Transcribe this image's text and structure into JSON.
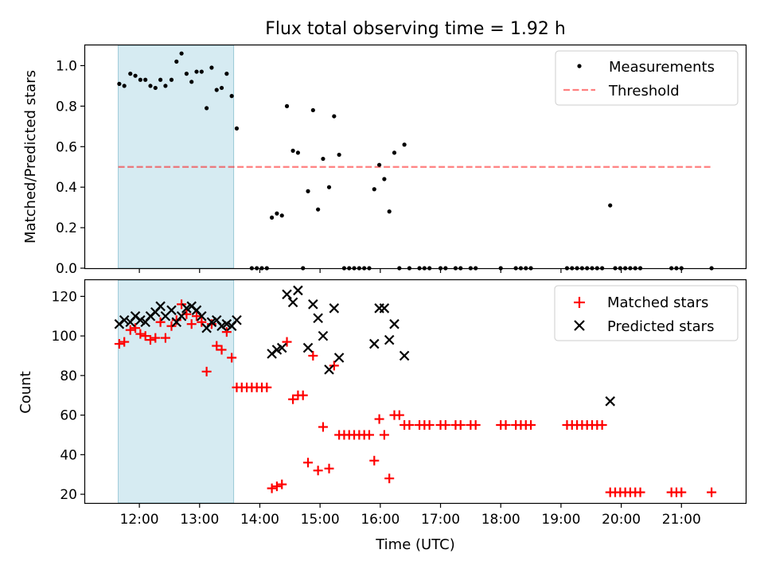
{
  "chart_data": [
    {
      "type": "scatter",
      "title": "Flux total observing time = 1.92 h",
      "xlabel": "",
      "ylabel": "Matched/Predicted stars",
      "ylim": [
        0,
        1.1
      ],
      "yticks": [
        "0.0",
        "0.2",
        "0.4",
        "0.6",
        "0.8",
        "1.0"
      ],
      "legend_position": "top-right",
      "grid": false,
      "shaded_interval": {
        "start": "11:39",
        "end": "13:34",
        "color": "#add8e6"
      },
      "threshold": {
        "name": "Threshold",
        "value": 0.5,
        "x_start": "11:39",
        "x_end": "21:30",
        "color": "#ff0000"
      },
      "series": [
        {
          "name": "Measurements",
          "marker": "dot",
          "color": "#000000",
          "points": [
            [
              "11:40",
              0.91
            ],
            [
              "11:45",
              0.9
            ],
            [
              "11:51",
              0.96
            ],
            [
              "11:56",
              0.95
            ],
            [
              "12:01",
              0.93
            ],
            [
              "12:06",
              0.93
            ],
            [
              "12:11",
              0.9
            ],
            [
              "12:16",
              0.89
            ],
            [
              "12:21",
              0.93
            ],
            [
              "12:26",
              0.9
            ],
            [
              "12:32",
              0.93
            ],
            [
              "12:37",
              1.02
            ],
            [
              "12:42",
              1.06
            ],
            [
              "12:47",
              0.96
            ],
            [
              "12:52",
              0.92
            ],
            [
              "12:57",
              0.97
            ],
            [
              "13:02",
              0.97
            ],
            [
              "13:07",
              0.79
            ],
            [
              "13:12",
              0.99
            ],
            [
              "13:17",
              0.88
            ],
            [
              "13:22",
              0.89
            ],
            [
              "13:27",
              0.96
            ],
            [
              "13:32",
              0.85
            ],
            [
              "13:37",
              0.69
            ],
            [
              "14:12",
              0.25
            ],
            [
              "14:17",
              0.27
            ],
            [
              "14:22",
              0.26
            ],
            [
              "14:27",
              0.8
            ],
            [
              "14:33",
              0.58
            ],
            [
              "14:38",
              0.57
            ],
            [
              "14:48",
              0.38
            ],
            [
              "14:53",
              0.78
            ],
            [
              "14:58",
              0.29
            ],
            [
              "15:03",
              0.54
            ],
            [
              "15:09",
              0.4
            ],
            [
              "15:14",
              0.75
            ],
            [
              "15:19",
              0.56
            ],
            [
              "15:54",
              0.39
            ],
            [
              "15:59",
              0.51
            ],
            [
              "16:04",
              0.44
            ],
            [
              "16:09",
              0.28
            ],
            [
              "16:14",
              0.57
            ],
            [
              "16:24",
              0.61
            ],
            [
              "19:49",
              0.31
            ],
            [
              "13:52",
              0.0
            ],
            [
              "13:57",
              0.0
            ],
            [
              "14:02",
              0.0
            ],
            [
              "14:07",
              0.0
            ],
            [
              "14:43",
              0.0
            ],
            [
              "15:24",
              0.0
            ],
            [
              "15:29",
              0.0
            ],
            [
              "15:34",
              0.0
            ],
            [
              "15:39",
              0.0
            ],
            [
              "15:44",
              0.0
            ],
            [
              "15:49",
              0.0
            ],
            [
              "16:19",
              0.0
            ],
            [
              "16:29",
              0.0
            ],
            [
              "16:39",
              0.0
            ],
            [
              "16:44",
              0.0
            ],
            [
              "16:49",
              0.0
            ],
            [
              "17:00",
              0.0
            ],
            [
              "17:05",
              0.0
            ],
            [
              "17:15",
              0.0
            ],
            [
              "17:20",
              0.0
            ],
            [
              "17:30",
              0.0
            ],
            [
              "17:35",
              0.0
            ],
            [
              "18:00",
              0.0
            ],
            [
              "18:15",
              0.0
            ],
            [
              "18:20",
              0.0
            ],
            [
              "18:25",
              0.0
            ],
            [
              "18:30",
              0.0
            ],
            [
              "19:06",
              0.0
            ],
            [
              "19:11",
              0.0
            ],
            [
              "19:16",
              0.0
            ],
            [
              "19:21",
              0.0
            ],
            [
              "19:26",
              0.0
            ],
            [
              "19:31",
              0.0
            ],
            [
              "19:36",
              0.0
            ],
            [
              "19:41",
              0.0
            ],
            [
              "19:54",
              0.0
            ],
            [
              "19:59",
              0.0
            ],
            [
              "20:04",
              0.0
            ],
            [
              "20:09",
              0.0
            ],
            [
              "20:14",
              0.0
            ],
            [
              "20:19",
              0.0
            ],
            [
              "20:50",
              0.0
            ],
            [
              "20:55",
              0.0
            ],
            [
              "21:00",
              0.0
            ],
            [
              "21:30",
              0.0
            ]
          ]
        }
      ]
    },
    {
      "type": "scatter",
      "title": "",
      "xlabel": "Time (UTC)",
      "ylabel": "Count",
      "ylim": [
        15.6,
        128.2
      ],
      "yticks": [
        "20",
        "40",
        "60",
        "80",
        "100",
        "120"
      ],
      "xticks": [
        "12:00",
        "13:00",
        "14:00",
        "15:00",
        "16:00",
        "17:00",
        "18:00",
        "19:00",
        "20:00",
        "21:00"
      ],
      "xlim": [
        "11:06",
        "22:04"
      ],
      "legend_position": "top-right",
      "grid": false,
      "shaded_interval": {
        "start": "11:39",
        "end": "13:34",
        "color": "#add8e6"
      },
      "series": [
        {
          "name": "Matched stars",
          "marker": "plus",
          "color": "#ff0000",
          "points": [
            [
              "11:40",
              96
            ],
            [
              "11:45",
              97
            ],
            [
              "11:51",
              103
            ],
            [
              "11:56",
              104
            ],
            [
              "12:01",
              101
            ],
            [
              "12:06",
              100
            ],
            [
              "12:11",
              98
            ],
            [
              "12:16",
              99
            ],
            [
              "12:21",
              107
            ],
            [
              "12:26",
              99
            ],
            [
              "12:32",
              105
            ],
            [
              "12:37",
              108
            ],
            [
              "12:42",
              116
            ],
            [
              "12:47",
              111
            ],
            [
              "12:52",
              106
            ],
            [
              "12:57",
              110
            ],
            [
              "13:02",
              107
            ],
            [
              "13:07",
              82
            ],
            [
              "13:12",
              106
            ],
            [
              "13:17",
              95
            ],
            [
              "13:22",
              93
            ],
            [
              "13:27",
              102
            ],
            [
              "13:32",
              89
            ],
            [
              "13:37",
              74
            ],
            [
              "13:42",
              74
            ],
            [
              "13:47",
              74
            ],
            [
              "13:52",
              74
            ],
            [
              "13:57",
              74
            ],
            [
              "14:02",
              74
            ],
            [
              "14:07",
              74
            ],
            [
              "14:12",
              23
            ],
            [
              "14:17",
              24
            ],
            [
              "14:22",
              25
            ],
            [
              "14:27",
              97
            ],
            [
              "14:33",
              68
            ],
            [
              "14:38",
              70
            ],
            [
              "14:43",
              70
            ],
            [
              "14:48",
              36
            ],
            [
              "14:53",
              90
            ],
            [
              "14:58",
              32
            ],
            [
              "15:03",
              54
            ],
            [
              "15:09",
              33
            ],
            [
              "15:14",
              85
            ],
            [
              "15:19",
              50
            ],
            [
              "15:24",
              50
            ],
            [
              "15:29",
              50
            ],
            [
              "15:34",
              50
            ],
            [
              "15:39",
              50
            ],
            [
              "15:44",
              50
            ],
            [
              "15:49",
              50
            ],
            [
              "15:54",
              37
            ],
            [
              "15:59",
              58
            ],
            [
              "16:04",
              50
            ],
            [
              "16:09",
              28
            ],
            [
              "16:14",
              60
            ],
            [
              "16:19",
              60
            ],
            [
              "16:24",
              55
            ],
            [
              "16:29",
              55
            ],
            [
              "16:39",
              55
            ],
            [
              "16:44",
              55
            ],
            [
              "16:49",
              55
            ],
            [
              "17:00",
              55
            ],
            [
              "17:05",
              55
            ],
            [
              "17:15",
              55
            ],
            [
              "17:20",
              55
            ],
            [
              "17:30",
              55
            ],
            [
              "17:35",
              55
            ],
            [
              "18:00",
              55
            ],
            [
              "18:05",
              55
            ],
            [
              "18:15",
              55
            ],
            [
              "18:20",
              55
            ],
            [
              "18:25",
              55
            ],
            [
              "18:30",
              55
            ],
            [
              "19:06",
              55
            ],
            [
              "19:11",
              55
            ],
            [
              "19:16",
              55
            ],
            [
              "19:21",
              55
            ],
            [
              "19:26",
              55
            ],
            [
              "19:31",
              55
            ],
            [
              "19:36",
              55
            ],
            [
              "19:41",
              55
            ],
            [
              "19:49",
              21
            ],
            [
              "19:54",
              21
            ],
            [
              "19:59",
              21
            ],
            [
              "20:04",
              21
            ],
            [
              "20:09",
              21
            ],
            [
              "20:14",
              21
            ],
            [
              "20:19",
              21
            ],
            [
              "20:50",
              21
            ],
            [
              "20:55",
              21
            ],
            [
              "21:00",
              21
            ],
            [
              "21:30",
              21
            ]
          ]
        },
        {
          "name": "Predicted stars",
          "marker": "x",
          "color": "#000000",
          "points": [
            [
              "11:40",
              106
            ],
            [
              "11:45",
              108
            ],
            [
              "11:51",
              107
            ],
            [
              "11:56",
              110
            ],
            [
              "12:01",
              108
            ],
            [
              "12:06",
              107
            ],
            [
              "12:11",
              110
            ],
            [
              "12:16",
              112
            ],
            [
              "12:21",
              115
            ],
            [
              "12:26",
              110
            ],
            [
              "12:32",
              113
            ],
            [
              "12:37",
              107
            ],
            [
              "12:42",
              110
            ],
            [
              "12:47",
              114
            ],
            [
              "12:52",
              115
            ],
            [
              "12:57",
              113
            ],
            [
              "13:02",
              110
            ],
            [
              "13:07",
              104
            ],
            [
              "13:12",
              107
            ],
            [
              "13:17",
              108
            ],
            [
              "13:22",
              105
            ],
            [
              "13:27",
              106
            ],
            [
              "13:32",
              105
            ],
            [
              "13:37",
              108
            ],
            [
              "14:12",
              91
            ],
            [
              "14:17",
              93
            ],
            [
              "14:22",
              94
            ],
            [
              "14:27",
              121
            ],
            [
              "14:33",
              117
            ],
            [
              "14:38",
              123
            ],
            [
              "14:48",
              94
            ],
            [
              "14:53",
              116
            ],
            [
              "14:58",
              109
            ],
            [
              "15:03",
              100
            ],
            [
              "15:09",
              83
            ],
            [
              "15:14",
              114
            ],
            [
              "15:19",
              89
            ],
            [
              "15:54",
              96
            ],
            [
              "15:59",
              114
            ],
            [
              "16:04",
              114
            ],
            [
              "16:09",
              98
            ],
            [
              "16:14",
              106
            ],
            [
              "16:24",
              90
            ],
            [
              "19:49",
              67
            ]
          ]
        }
      ]
    }
  ]
}
